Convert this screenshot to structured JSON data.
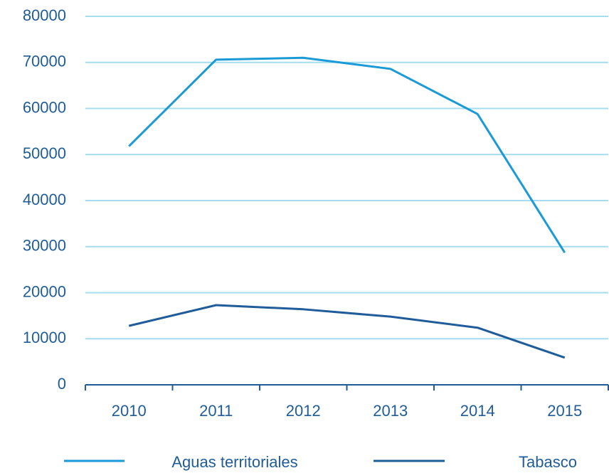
{
  "chart_data": {
    "type": "line",
    "categories": [
      "2010",
      "2011",
      "2012",
      "2013",
      "2014",
      "2015"
    ],
    "series": [
      {
        "name": "Aguas territoriales",
        "color": "#1a9ad6",
        "values": [
          51800,
          70600,
          71000,
          68600,
          58800,
          28700
        ]
      },
      {
        "name": "Tabasco",
        "color": "#1f5c99",
        "values": [
          12800,
          17300,
          16400,
          14800,
          12400,
          5900
        ]
      }
    ],
    "ylim": [
      0,
      80000
    ],
    "yticks": [
      0,
      10000,
      20000,
      30000,
      40000,
      50000,
      60000,
      70000,
      80000
    ],
    "grid": true,
    "grid_color": "#a6dcef",
    "axis_color": "#1f5c99",
    "legend": "bottom"
  }
}
